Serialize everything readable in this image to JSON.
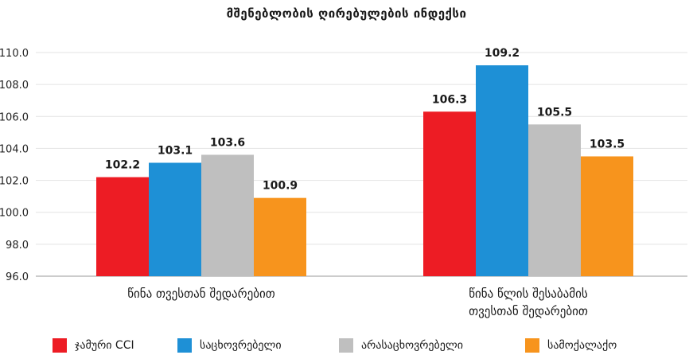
{
  "chart_data": {
    "type": "bar",
    "title": "მშენებლობის ღირებულების ინდექსი",
    "categories": [
      "წინა თვესთან შედარებით",
      "წინა წლის შესაბამის\nთვესთან შედარებით"
    ],
    "series": [
      {
        "name": "ჯამური CCI",
        "color": "#ed1c24",
        "values": [
          102.2,
          106.3
        ]
      },
      {
        "name": "საცხოვრებელი",
        "color": "#1e90d6",
        "values": [
          103.1,
          109.2
        ]
      },
      {
        "name": "არასაცხოვრებელი",
        "color": "#bfbfbf",
        "values": [
          103.6,
          105.5
        ]
      },
      {
        "name": "სამოქალაქო",
        "color": "#f7941d",
        "values": [
          100.9,
          103.5
        ]
      }
    ],
    "ylim": [
      96.0,
      110.0
    ],
    "yticks": [
      "96.0",
      "98.0",
      "100.0",
      "102.0",
      "104.0",
      "106.0",
      "108.0",
      "110.0"
    ],
    "grid": true,
    "legend": "bottom",
    "xlabel": "",
    "ylabel": ""
  }
}
